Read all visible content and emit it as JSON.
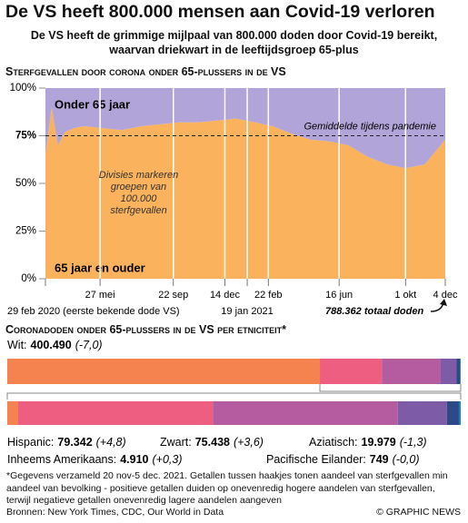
{
  "title": "De VS heeft 800.000 mensen aan Covid-19 verloren",
  "subtitle": "De VS heeft de grimmige mijlpaal van 800.000 doden door Covid-19 bereikt, waarvan driekwart in de leeftijdsgroep 65-plus",
  "footnote": "*Gegevens verzameld 20 nov-5 dec. 2021. Getallen tussen haakjes tonen aandeel van sterfgevallen min aandeel van bevolking - positieve getallen duiden op onevenredig hogere aandelen van sterfgevallen, terwijl negatieve getallen onevenredig lagere aandelen aangeven",
  "source": "Bronnen: New York Times, CDC, Our World in Data",
  "credit": "© GRAPHIC NEWS",
  "chart_data": [
    {
      "type": "area",
      "title": "Sterfgevallen door corona onder 65-plussers in de VS",
      "x": [
        "2020-02-29",
        "2020-03-10",
        "2020-03-20",
        "2020-04-01",
        "2020-04-15",
        "2020-05-01",
        "2020-06-01",
        "2020-07-01",
        "2020-08-01",
        "2020-09-01",
        "2020-10-01",
        "2020-11-01",
        "2020-12-01",
        "2021-01-01",
        "2021-02-01",
        "2021-03-01",
        "2021-04-01",
        "2021-05-01",
        "2021-06-01",
        "2021-07-01",
        "2021-08-01",
        "2021-09-01",
        "2021-10-01",
        "2021-11-01",
        "2021-12-04"
      ],
      "series": [
        {
          "name": "65 jaar en ouder",
          "color": "#fbb25c",
          "values": [
            65,
            90,
            70,
            77,
            79,
            80,
            79,
            78,
            80,
            81,
            82,
            82,
            83,
            84,
            82,
            80,
            76,
            73,
            72,
            70,
            64,
            60,
            58,
            60,
            73
          ]
        },
        {
          "name": "Onder 65 jaar",
          "color": "#b1a4d8",
          "values": [
            35,
            10,
            30,
            23,
            21,
            20,
            21,
            22,
            20,
            19,
            18,
            18,
            17,
            16,
            18,
            20,
            24,
            27,
            28,
            30,
            36,
            40,
            42,
            40,
            27
          ]
        }
      ],
      "stacked": true,
      "xlim": [
        "2020-02-29",
        "2021-12-04"
      ],
      "xticks": [
        {
          "value": "2020-02-29",
          "label": "29 feb 2020 (eerste bekende dode VS)"
        },
        {
          "value": "2020-05-27",
          "label": "27 mei"
        },
        {
          "value": "2020-09-22",
          "label": "22 sep"
        },
        {
          "value": "2020-12-14",
          "label": "14 dec"
        },
        {
          "value": "2021-01-19",
          "label": "19 jan 2021"
        },
        {
          "value": "2021-02-22",
          "label": "22 feb"
        },
        {
          "value": "2021-06-16",
          "label": "16 jun"
        },
        {
          "value": "2021-10-01",
          "label": "1 okt"
        },
        {
          "value": "2021-12-04",
          "label": "4 dec"
        }
      ],
      "ylim": [
        0,
        100
      ],
      "yticks": [
        {
          "value": 0,
          "label": "0%"
        },
        {
          "value": 25,
          "label": "25%"
        },
        {
          "value": 50,
          "label": "50%"
        },
        {
          "value": 75,
          "label": "75%"
        },
        {
          "value": 100,
          "label": "100%"
        }
      ],
      "average": {
        "value": 75,
        "label": "Gemiddelde tijdens pandemie"
      },
      "division_note": "Divisies markeren groepen van 100.000 sterfgevallen",
      "total_label": "788.362 totaal doden"
    },
    {
      "type": "bar",
      "orientation": "horizontal",
      "stacked": true,
      "title": "Coronadoden onder 65-plussers in de VS per etniciteit*",
      "categories": [
        "Wit:",
        "Hispanic:",
        "Zwart:",
        "Aziatisch:",
        "Inheems Amerikaans:",
        "Pacifische Eilander:"
      ],
      "values": [
        400490,
        79342,
        75438,
        19979,
        4910,
        749
      ],
      "value_labels": [
        "400.490",
        "79.342",
        "75.438",
        "19.979",
        "4.910",
        "749"
      ],
      "changes": [
        -7.0,
        4.8,
        3.6,
        -1.3,
        0.3,
        0.0
      ],
      "change_labels": [
        "(-7,0)",
        "(+4,8)",
        "(+3,6)",
        "(-1,3)",
        "(+0,3)",
        "(-0,0)"
      ],
      "colors": [
        "#f4834f",
        "#ee5e80",
        "#b45c9f",
        "#7d5ba7",
        "#2e4a86",
        "#1f80c2"
      ]
    }
  ]
}
